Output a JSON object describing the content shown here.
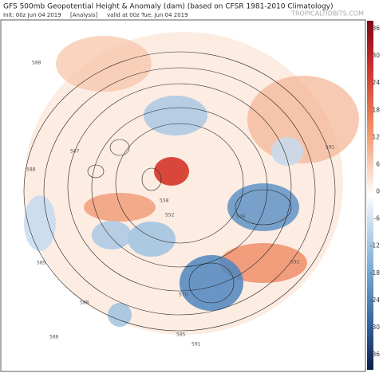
{
  "header": {
    "title": "GFS 500mb Geopotential Height & Anomaly (dam) (based on CFSR 1981-2010 Climatology)",
    "init": "Init: 00z Jun 04 2019",
    "run_type": "[Analysis]",
    "valid": "valid at 00z Tue, Jun 04 2019",
    "site": "TROPICALTIDBITS.COM"
  },
  "colorbar": {
    "ticks": [
      36,
      30,
      24,
      18,
      12,
      6,
      0,
      -6,
      -12,
      -18,
      -24,
      -30,
      -36
    ]
  },
  "contour_labels": [
    "588",
    "567",
    "588",
    "585",
    "588",
    "588",
    "591",
    "591",
    "591",
    "558",
    "552",
    "549",
    "570",
    "585"
  ]
}
